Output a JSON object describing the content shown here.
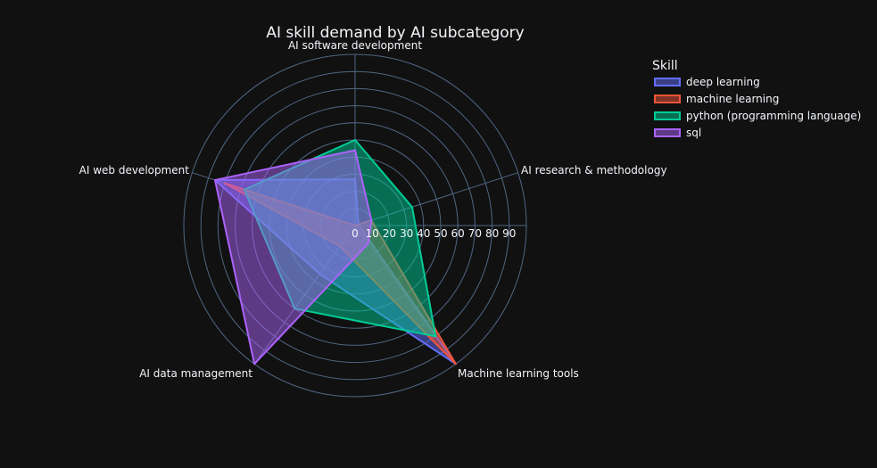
{
  "chart_data": {
    "type": "radar",
    "title": "AI skill demand by AI subcategory",
    "categories": [
      "AI software development",
      "AI research & methodology",
      "Machine learning tools",
      "AI data management",
      "AI web development"
    ],
    "radial_ticks": [
      "0",
      "10",
      "20",
      "30",
      "40",
      "50",
      "60",
      "70",
      "80",
      "90"
    ],
    "rmax": 100,
    "legend_title": "Skill",
    "legend_position": "top-right",
    "series": [
      {
        "name": "deep learning",
        "color": "#636efa",
        "values": [
          27,
          2,
          100,
          35,
          86
        ]
      },
      {
        "name": "machine learning",
        "color": "#ef553b",
        "values": [
          0,
          10,
          100,
          15,
          80
        ]
      },
      {
        "name": "python (programming language)",
        "color": "#00cc96",
        "values": [
          50,
          35,
          80,
          60,
          68
        ]
      },
      {
        "name": "sql",
        "color": "#ab63fa",
        "values": [
          44,
          10,
          13,
          100,
          86
        ]
      }
    ]
  }
}
